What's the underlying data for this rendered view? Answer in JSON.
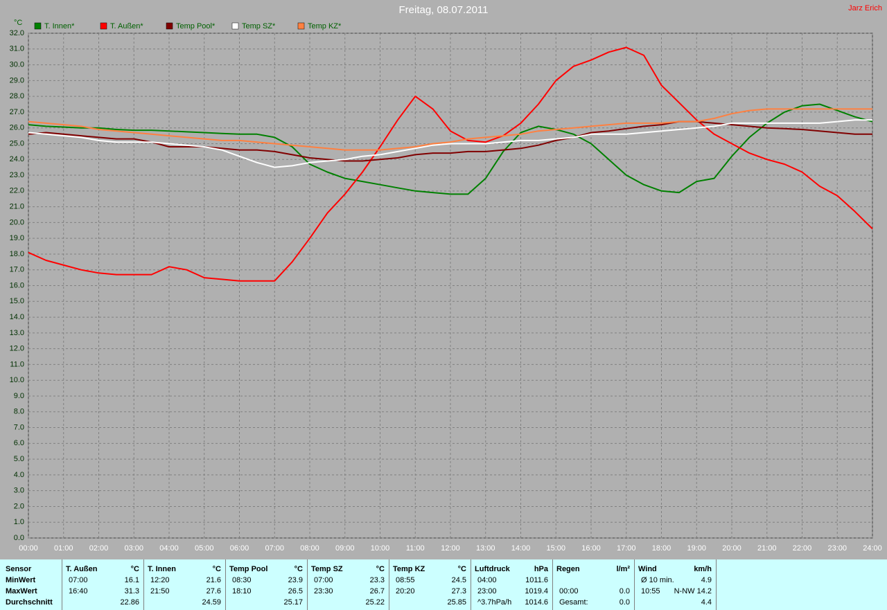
{
  "chart_data": {
    "type": "line",
    "title": "Freitag, 08.07.2011",
    "author": "Jarz Erich",
    "y_label": "°C",
    "x": [
      0,
      0.5,
      1,
      1.5,
      2,
      2.5,
      3,
      3.5,
      4,
      4.5,
      5,
      5.5,
      6,
      6.5,
      7,
      7.5,
      8,
      8.5,
      9,
      9.5,
      10,
      10.5,
      11,
      11.5,
      12,
      12.5,
      13,
      13.5,
      14,
      14.5,
      15,
      15.5,
      16,
      16.5,
      17,
      17.5,
      18,
      18.5,
      19,
      19.5,
      20,
      20.5,
      21,
      21.5,
      22,
      22.5,
      23,
      23.5,
      24
    ],
    "series": [
      {
        "name": "T. Innen*",
        "color": "#008000",
        "values": [
          26.2,
          26.1,
          26.05,
          26.0,
          26.0,
          25.9,
          25.85,
          25.85,
          25.8,
          25.75,
          25.7,
          25.65,
          25.6,
          25.6,
          25.4,
          24.8,
          23.7,
          23.2,
          22.8,
          22.6,
          22.4,
          22.2,
          22.0,
          21.9,
          21.8,
          21.8,
          22.8,
          24.5,
          25.7,
          26.1,
          25.9,
          25.6,
          25.0,
          24.0,
          23.0,
          22.4,
          22.0,
          21.9,
          22.6,
          22.8,
          24.2,
          25.4,
          26.3,
          27.0,
          27.4,
          27.5,
          27.1,
          26.7,
          26.4
        ]
      },
      {
        "name": "T. Außen*",
        "color": "#ff0000",
        "values": [
          18.1,
          17.6,
          17.3,
          17.0,
          16.8,
          16.7,
          16.7,
          16.7,
          17.2,
          17.0,
          16.5,
          16.4,
          16.3,
          16.3,
          16.3,
          17.5,
          19.0,
          20.6,
          21.8,
          23.2,
          24.8,
          26.5,
          28.0,
          27.2,
          25.8,
          25.2,
          25.1,
          25.5,
          26.3,
          27.5,
          29.0,
          29.9,
          30.3,
          30.8,
          31.1,
          30.6,
          28.7,
          27.6,
          26.5,
          25.6,
          25.0,
          24.4,
          24.0,
          23.7,
          23.2,
          22.3,
          21.7,
          20.7,
          19.6
        ]
      },
      {
        "name": "Temp Pool*",
        "color": "#800000",
        "values": [
          25.6,
          25.7,
          25.6,
          25.5,
          25.4,
          25.3,
          25.3,
          25.1,
          24.8,
          24.8,
          24.8,
          24.7,
          24.6,
          24.6,
          24.5,
          24.3,
          24.1,
          24.0,
          23.9,
          23.9,
          24.0,
          24.1,
          24.3,
          24.4,
          24.4,
          24.5,
          24.5,
          24.6,
          24.7,
          24.9,
          25.2,
          25.4,
          25.7,
          25.8,
          25.95,
          26.1,
          26.2,
          26.4,
          26.4,
          26.3,
          26.2,
          26.1,
          26.0,
          25.95,
          25.9,
          25.8,
          25.7,
          25.6,
          25.6
        ]
      },
      {
        "name": "Temp SZ*",
        "color": "#ffffff",
        "values": [
          25.7,
          25.6,
          25.5,
          25.4,
          25.2,
          25.1,
          25.1,
          25.1,
          25.0,
          24.9,
          24.8,
          24.6,
          24.2,
          23.8,
          23.5,
          23.6,
          23.8,
          23.9,
          24.0,
          24.2,
          24.3,
          24.5,
          24.7,
          24.9,
          25.0,
          25.0,
          25.0,
          25.1,
          25.2,
          25.2,
          25.3,
          25.4,
          25.6,
          25.6,
          25.6,
          25.7,
          25.8,
          25.9,
          26.0,
          26.1,
          26.3,
          26.3,
          26.3,
          26.3,
          26.3,
          26.3,
          26.4,
          26.5,
          26.5
        ]
      },
      {
        "name": "Temp KZ*",
        "color": "#ff8040",
        "values": [
          26.4,
          26.3,
          26.2,
          26.1,
          25.9,
          25.8,
          25.7,
          25.6,
          25.5,
          25.4,
          25.3,
          25.2,
          25.2,
          25.1,
          25.0,
          24.9,
          24.8,
          24.7,
          24.6,
          24.6,
          24.6,
          24.7,
          24.8,
          25.0,
          25.1,
          25.3,
          25.4,
          25.5,
          25.6,
          25.8,
          25.9,
          26.0,
          26.1,
          26.2,
          26.3,
          26.3,
          26.3,
          26.4,
          26.4,
          26.6,
          26.9,
          27.1,
          27.2,
          27.2,
          27.2,
          27.2,
          27.2,
          27.2,
          27.2
        ]
      }
    ],
    "xlim": [
      0,
      24
    ],
    "xticks": [
      {
        "value": 0,
        "label": "00:00"
      },
      {
        "value": 1,
        "label": "01:00"
      },
      {
        "value": 2,
        "label": "02:00"
      },
      {
        "value": 3,
        "label": "03:00"
      },
      {
        "value": 4,
        "label": "04:00"
      },
      {
        "value": 5,
        "label": "05:00"
      },
      {
        "value": 6,
        "label": "06:00"
      },
      {
        "value": 7,
        "label": "07:00"
      },
      {
        "value": 8,
        "label": "08:00"
      },
      {
        "value": 9,
        "label": "09:00"
      },
      {
        "value": 10,
        "label": "10:00"
      },
      {
        "value": 11,
        "label": "11:00"
      },
      {
        "value": 12,
        "label": "12:00"
      },
      {
        "value": 13,
        "label": "13:00"
      },
      {
        "value": 14,
        "label": "14:00"
      },
      {
        "value": 15,
        "label": "15:00"
      },
      {
        "value": 16,
        "label": "16:00"
      },
      {
        "value": 17,
        "label": "17:00"
      },
      {
        "value": 18,
        "label": "18:00"
      },
      {
        "value": 19,
        "label": "19:00"
      },
      {
        "value": 20,
        "label": "20:00"
      },
      {
        "value": 21,
        "label": "21:00"
      },
      {
        "value": 22,
        "label": "22:00"
      },
      {
        "value": 23,
        "label": "23:00"
      },
      {
        "value": 24,
        "label": "24:00"
      }
    ],
    "ylim": [
      0,
      32
    ],
    "yticks": [
      {
        "value": 0,
        "label": "0.0"
      },
      {
        "value": 1,
        "label": "1.0"
      },
      {
        "value": 2,
        "label": "2.0"
      },
      {
        "value": 3,
        "label": "3.0"
      },
      {
        "value": 4,
        "label": "4.0"
      },
      {
        "value": 5,
        "label": "5.0"
      },
      {
        "value": 6,
        "label": "6.0"
      },
      {
        "value": 7,
        "label": "7.0"
      },
      {
        "value": 8,
        "label": "8.0"
      },
      {
        "value": 9,
        "label": "9.0"
      },
      {
        "value": 10,
        "label": "10.0"
      },
      {
        "value": 11,
        "label": "11.0"
      },
      {
        "value": 12,
        "label": "12.0"
      },
      {
        "value": 13,
        "label": "13.0"
      },
      {
        "value": 14,
        "label": "14.0"
      },
      {
        "value": 15,
        "label": "15.0"
      },
      {
        "value": 16,
        "label": "16.0"
      },
      {
        "value": 17,
        "label": "17.0"
      },
      {
        "value": 18,
        "label": "18.0"
      },
      {
        "value": 19,
        "label": "19.0"
      },
      {
        "value": 20,
        "label": "20.0"
      },
      {
        "value": 21,
        "label": "21.0"
      },
      {
        "value": 22,
        "label": "22.0"
      },
      {
        "value": 23,
        "label": "23.0"
      },
      {
        "value": 24,
        "label": "24.0"
      },
      {
        "value": 25,
        "label": "25.0"
      },
      {
        "value": 26,
        "label": "26.0"
      },
      {
        "value": 27,
        "label": "27.0"
      },
      {
        "value": 28,
        "label": "28.0"
      },
      {
        "value": 29,
        "label": "29.0"
      },
      {
        "value": 30,
        "label": "30.0"
      },
      {
        "value": 31,
        "label": "31.0"
      },
      {
        "value": 32,
        "label": "32.0"
      }
    ],
    "grid": true,
    "legend": "top"
  },
  "summary_table": {
    "row_labels": [
      "Sensor",
      "MinWert",
      "MaxWert",
      "Durchschnitt"
    ],
    "blocks": [
      {
        "name": "T. Außen",
        "unit": "°C",
        "rows": [
          [
            "07:00",
            "16.1"
          ],
          [
            "16:40",
            "31.3"
          ],
          [
            "22.86"
          ]
        ]
      },
      {
        "name": "T. Innen",
        "unit": "°C",
        "rows": [
          [
            "12:20",
            "21.6"
          ],
          [
            "21:50",
            "27.6"
          ],
          [
            "24.59"
          ]
        ]
      },
      {
        "name": "Temp Pool",
        "unit": "°C",
        "rows": [
          [
            "08:30",
            "23.9"
          ],
          [
            "18:10",
            "26.5"
          ],
          [
            "25.17"
          ]
        ]
      },
      {
        "name": "Temp SZ",
        "unit": "°C",
        "rows": [
          [
            "07:00",
            "23.3"
          ],
          [
            "23:30",
            "26.7"
          ],
          [
            "25.22"
          ]
        ]
      },
      {
        "name": "Temp KZ",
        "unit": "°C",
        "rows": [
          [
            "08:55",
            "24.5"
          ],
          [
            "20:20",
            "27.3"
          ],
          [
            "25.85"
          ]
        ]
      },
      {
        "name": "Luftdruck",
        "unit": "hPa",
        "rows": [
          [
            "04:00",
            "1011.6"
          ],
          [
            "23:00",
            "1019.4"
          ],
          [
            "^3.7hPa/h",
            "1014.6"
          ]
        ]
      },
      {
        "name": "Regen",
        "unit": "l/m²",
        "rows": [
          [],
          [
            "00:00",
            "0.0"
          ],
          [
            "Gesamt:",
            "0.0"
          ]
        ]
      },
      {
        "name": "Wind",
        "unit": "km/h",
        "rows": [
          [
            "Ø 10 min.",
            "4.9"
          ],
          [
            "10:55",
            "N-NW 14.2"
          ],
          [
            "4.4"
          ]
        ]
      }
    ]
  }
}
